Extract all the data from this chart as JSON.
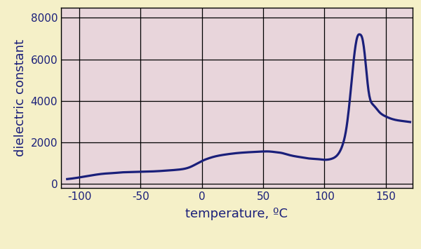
{
  "xlabel": "temperature, ºC",
  "ylabel": "dielectric constant",
  "xlim": [
    -115,
    172
  ],
  "ylim": [
    -200,
    8500
  ],
  "xticks": [
    -100,
    -50,
    0,
    50,
    100,
    150
  ],
  "yticks": [
    0,
    2000,
    4000,
    6000,
    8000
  ],
  "background_color": "#f5f0c8",
  "plot_bg_color": "#e8d5db",
  "line_color": "#1a1f7a",
  "line_width": 2.3,
  "curve_x": [
    -110,
    -100,
    -90,
    -80,
    -70,
    -65,
    -60,
    -55,
    -50,
    -45,
    -40,
    -35,
    -30,
    -20,
    -10,
    0,
    5,
    10,
    20,
    30,
    40,
    50,
    55,
    60,
    65,
    70,
    75,
    80,
    85,
    90,
    95,
    100,
    103,
    106,
    109,
    112,
    115,
    118,
    121,
    124,
    127,
    129,
    131,
    133,
    136,
    140,
    145,
    150,
    155,
    160,
    165,
    170
  ],
  "curve_y": [
    230,
    310,
    410,
    490,
    530,
    555,
    565,
    575,
    580,
    590,
    600,
    615,
    635,
    680,
    800,
    1100,
    1220,
    1310,
    1420,
    1490,
    1530,
    1560,
    1560,
    1530,
    1490,
    1410,
    1340,
    1290,
    1240,
    1210,
    1190,
    1160,
    1170,
    1210,
    1300,
    1500,
    1900,
    2700,
    4200,
    6000,
    7100,
    7200,
    7000,
    6200,
    4500,
    3800,
    3450,
    3250,
    3130,
    3060,
    3020,
    2980
  ]
}
